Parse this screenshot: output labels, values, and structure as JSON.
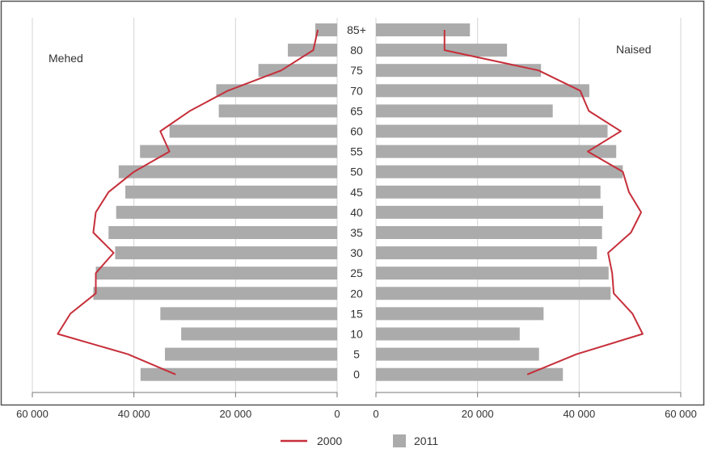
{
  "chart_data": {
    "type": "bar",
    "orientation": "horizontal-population-pyramid",
    "categories": [
      "0",
      "5",
      "10",
      "15",
      "20",
      "25",
      "30",
      "35",
      "40",
      "45",
      "50",
      "55",
      "60",
      "65",
      "70",
      "75",
      "80",
      "85+"
    ],
    "left_label": "Mehed",
    "right_label": "Naised",
    "xlim": [
      0,
      60000
    ],
    "x_ticks_left": [
      "60 000",
      "40 000",
      "20 000",
      "0"
    ],
    "x_ticks_right": [
      "0",
      "20 000",
      "40 000",
      "60 000"
    ],
    "grid": true,
    "legend": {
      "position": "bottom",
      "line_label": "2000",
      "bar_label": "2011"
    },
    "series": [
      {
        "name": "2011",
        "kind": "bar",
        "left_values": [
          38700,
          33900,
          30700,
          34800,
          48000,
          47500,
          43700,
          45000,
          43500,
          41700,
          43000,
          38800,
          33000,
          23300,
          23800,
          15500,
          9700,
          4300
        ],
        "right_values": [
          36800,
          32100,
          28300,
          33000,
          46200,
          45800,
          43500,
          44500,
          44700,
          44200,
          48600,
          47300,
          45600,
          34800,
          42000,
          32500,
          25800,
          18500
        ]
      },
      {
        "name": "2000",
        "kind": "line",
        "left_values": [
          31800,
          41200,
          55000,
          52500,
          47500,
          47500,
          44000,
          48000,
          47500,
          45000,
          40000,
          33000,
          34800,
          29000,
          21500,
          11000,
          4700,
          3800
        ],
        "right_values": [
          29800,
          39500,
          52500,
          50500,
          46800,
          46500,
          45700,
          50200,
          52200,
          49800,
          48600,
          41700,
          48200,
          41900,
          40200,
          32000,
          13500,
          13500
        ]
      }
    ]
  },
  "colors": {
    "bar": "#ababab",
    "line": "#c62f3a",
    "grid": "#d4d4d4",
    "frame": "#555555"
  }
}
